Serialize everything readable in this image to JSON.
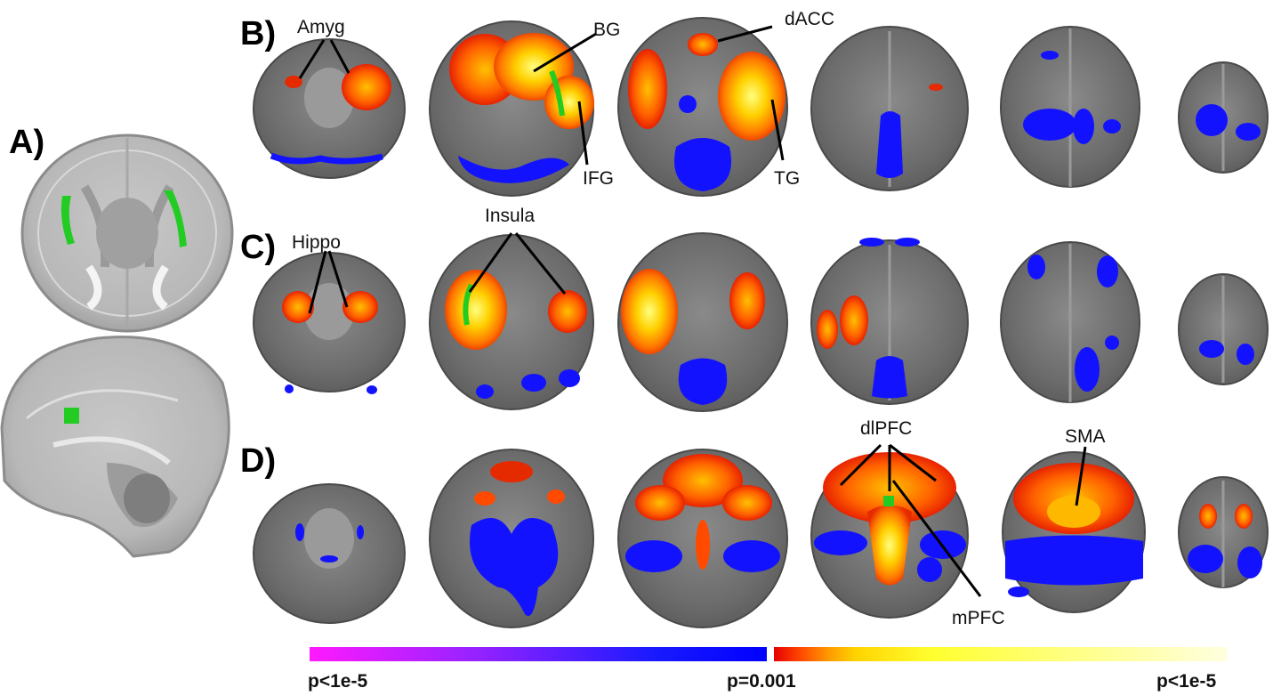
{
  "panels": {
    "a": "A)",
    "b": "B)",
    "c": "C)",
    "d": "D)"
  },
  "annotations": {
    "amyg": "Amyg",
    "bg": "BG",
    "dacc": "dACC",
    "ifg": "IFG",
    "tg": "TG",
    "hippo": "Hippo",
    "insula": "Insula",
    "dlpfc": "dlPFC",
    "sma": "SMA",
    "mpfc": "mPFC"
  },
  "colorbar": {
    "left_label": "p<1e-5",
    "center_label": "p=0.001",
    "right_label": "p<1e-5",
    "negative_gradient": [
      "#ff1aff",
      "#9a22ff",
      "#1a1aff",
      "#0000ff"
    ],
    "positive_gradient": [
      "#e60000",
      "#ff4a00",
      "#ff9a00",
      "#ffd400",
      "#ffff30",
      "#ffffe0"
    ]
  },
  "colors": {
    "positive": "#ff6a00",
    "positive_core": "#ffff40",
    "negative": "#1212ff",
    "seed": "#22cc22",
    "brain_bg": "#6e6e6e"
  }
}
